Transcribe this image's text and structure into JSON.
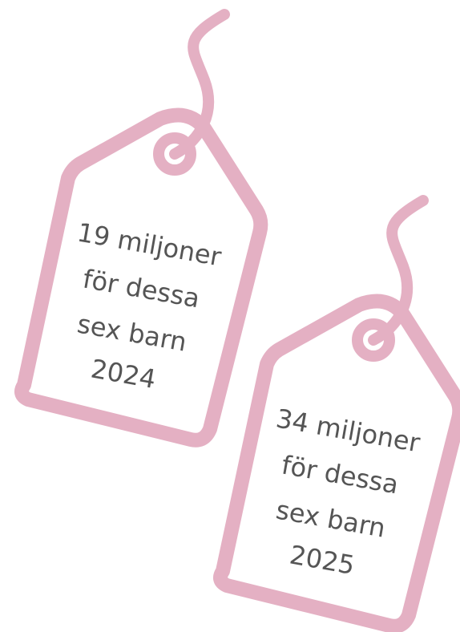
{
  "tags": [
    {
      "lines": [
        "19 miljoner",
        "för dessa",
        "sex barn",
        "2024"
      ]
    },
    {
      "lines": [
        "34 miljoner",
        "för dessa",
        "sex barn",
        "2025"
      ]
    }
  ]
}
